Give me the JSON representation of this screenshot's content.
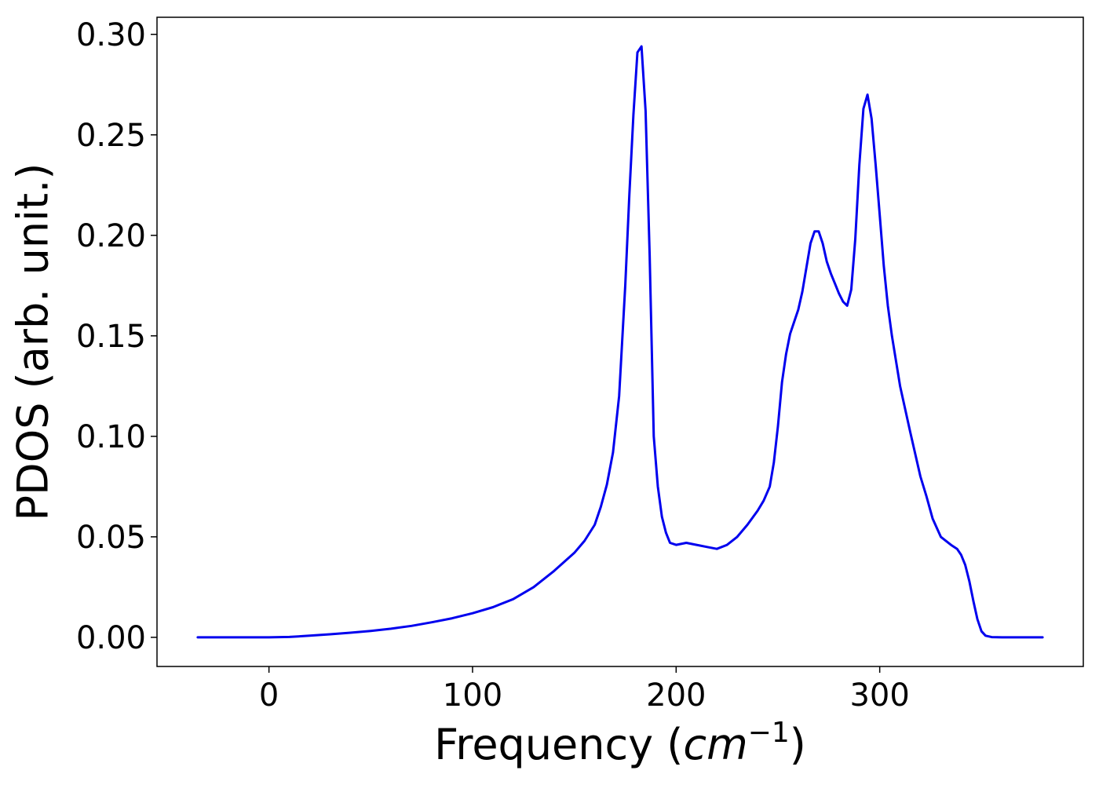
{
  "chart_data": {
    "type": "line",
    "xlabel_prefix": "Frequency (",
    "xlabel_unit": "cm",
    "xlabel_exponent": "−1",
    "xlabel_suffix": ")",
    "ylabel": "PDOS (arb. unit.)",
    "xlim": [
      -55,
      400
    ],
    "ylim": [
      -0.0145,
      0.3085
    ],
    "x_ticks": [
      {
        "value": 0,
        "label": "0"
      },
      {
        "value": 100,
        "label": "100"
      },
      {
        "value": 200,
        "label": "200"
      },
      {
        "value": 300,
        "label": "300"
      }
    ],
    "y_ticks": [
      {
        "value": 0.0,
        "label": "0.00"
      },
      {
        "value": 0.05,
        "label": "0.05"
      },
      {
        "value": 0.1,
        "label": "0.10"
      },
      {
        "value": 0.15,
        "label": "0.15"
      },
      {
        "value": 0.2,
        "label": "0.20"
      },
      {
        "value": 0.25,
        "label": "0.25"
      },
      {
        "value": 0.3,
        "label": "0.30"
      }
    ],
    "grid": false,
    "legend": "none",
    "series": [
      {
        "color": "#0000ee",
        "x": [
          -35,
          0,
          10,
          20,
          30,
          40,
          50,
          60,
          70,
          80,
          90,
          100,
          110,
          120,
          130,
          140,
          150,
          155,
          160,
          163,
          166,
          169,
          172,
          175,
          177,
          179,
          181,
          183,
          185,
          187,
          189,
          191,
          193,
          195,
          197,
          200,
          205,
          210,
          215,
          220,
          225,
          230,
          235,
          240,
          243,
          246,
          248,
          250,
          252,
          254,
          256,
          258,
          260,
          262,
          264,
          266,
          268,
          270,
          272,
          274,
          276,
          278,
          280,
          282,
          284,
          286,
          288,
          290,
          292,
          294,
          296,
          298,
          300,
          302,
          304,
          306,
          310,
          315,
          320,
          323,
          326,
          330,
          335,
          338,
          340,
          342,
          344,
          346,
          348,
          350,
          352,
          355,
          360,
          380
        ],
        "y": [
          0.0,
          0.0,
          0.0002,
          0.0008,
          0.0015,
          0.0023,
          0.0032,
          0.0043,
          0.0057,
          0.0075,
          0.0095,
          0.012,
          0.015,
          0.019,
          0.025,
          0.033,
          0.042,
          0.048,
          0.056,
          0.065,
          0.076,
          0.092,
          0.12,
          0.175,
          0.22,
          0.26,
          0.291,
          0.294,
          0.262,
          0.19,
          0.1,
          0.075,
          0.06,
          0.052,
          0.047,
          0.046,
          0.047,
          0.046,
          0.045,
          0.044,
          0.046,
          0.05,
          0.056,
          0.063,
          0.068,
          0.075,
          0.087,
          0.105,
          0.127,
          0.141,
          0.151,
          0.157,
          0.163,
          0.172,
          0.184,
          0.196,
          0.202,
          0.202,
          0.196,
          0.187,
          0.181,
          0.176,
          0.171,
          0.167,
          0.165,
          0.173,
          0.198,
          0.235,
          0.263,
          0.27,
          0.258,
          0.235,
          0.21,
          0.185,
          0.165,
          0.15,
          0.125,
          0.102,
          0.08,
          0.07,
          0.059,
          0.05,
          0.046,
          0.044,
          0.041,
          0.036,
          0.028,
          0.018,
          0.009,
          0.003,
          0.0008,
          0.0001,
          0.0,
          0.0
        ]
      }
    ]
  }
}
